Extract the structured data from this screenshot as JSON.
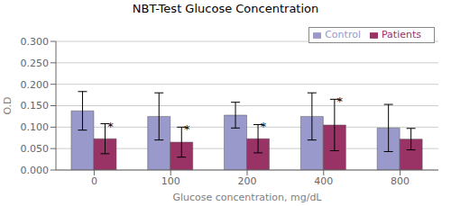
{
  "chart_data": {
    "type": "bar",
    "title": "NBT-Test Glucose Concentration",
    "xlabel": "Glucose concentration, mg/dL",
    "ylabel": "O.D",
    "categories": [
      "0",
      "100",
      "200",
      "400",
      "800"
    ],
    "series": [
      {
        "name": "Control",
        "color": "#9999CC",
        "values": [
          0.138,
          0.125,
          0.128,
          0.125,
          0.098
        ],
        "errors": [
          0.045,
          0.055,
          0.03,
          0.055,
          0.055
        ]
      },
      {
        "name": "Patients",
        "color": "#993366",
        "values": [
          0.073,
          0.065,
          0.073,
          0.105,
          0.072
        ],
        "errors": [
          0.035,
          0.035,
          0.033,
          0.06,
          0.025
        ]
      }
    ],
    "ylim": [
      0.0,
      0.3
    ],
    "yticks": [
      {
        "value": 0.0,
        "label": "0.000"
      },
      {
        "value": 0.05,
        "label": "0.050"
      },
      {
        "value": 0.1,
        "label": "0.100"
      },
      {
        "value": 0.15,
        "label": "0.150"
      },
      {
        "value": 0.2,
        "label": "0.200"
      },
      {
        "value": 0.25,
        "label": "0.250"
      },
      {
        "value": 0.3,
        "label": "0.300"
      }
    ],
    "grid": true,
    "legend": "upper right",
    "annotations": [
      {
        "text": "*",
        "category": "0",
        "series": "Patients"
      },
      {
        "text": "*",
        "category": "100",
        "series": "Patients"
      },
      {
        "text": "*",
        "category": "200",
        "series": "Patients"
      },
      {
        "text": "*",
        "category": "400",
        "series": "Patients"
      }
    ]
  }
}
